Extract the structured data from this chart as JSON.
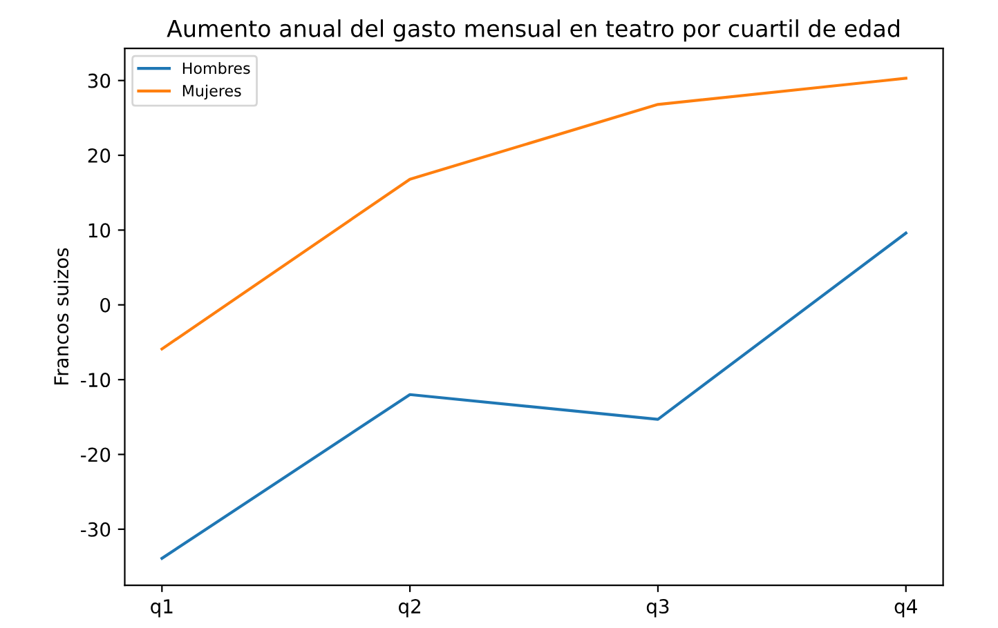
{
  "chart_data": {
    "type": "line",
    "title": "Aumento anual del gasto mensual en teatro por cuartil de edad",
    "ylabel": "Francos suizos",
    "categories": [
      "q1",
      "q2",
      "q3",
      "q4"
    ],
    "series": [
      {
        "name": "Hombres",
        "color": "#1f77b4",
        "values": [
          -33.9,
          -12.0,
          -15.3,
          9.6
        ]
      },
      {
        "name": "Mujeres",
        "color": "#ff7f0e",
        "values": [
          -5.9,
          16.8,
          26.8,
          30.3
        ]
      }
    ],
    "ylim": [
      -37.5,
      34.3
    ],
    "yticks": [
      -30,
      -20,
      -10,
      0,
      10,
      20,
      30
    ],
    "legend": "top left",
    "grid": false
  }
}
